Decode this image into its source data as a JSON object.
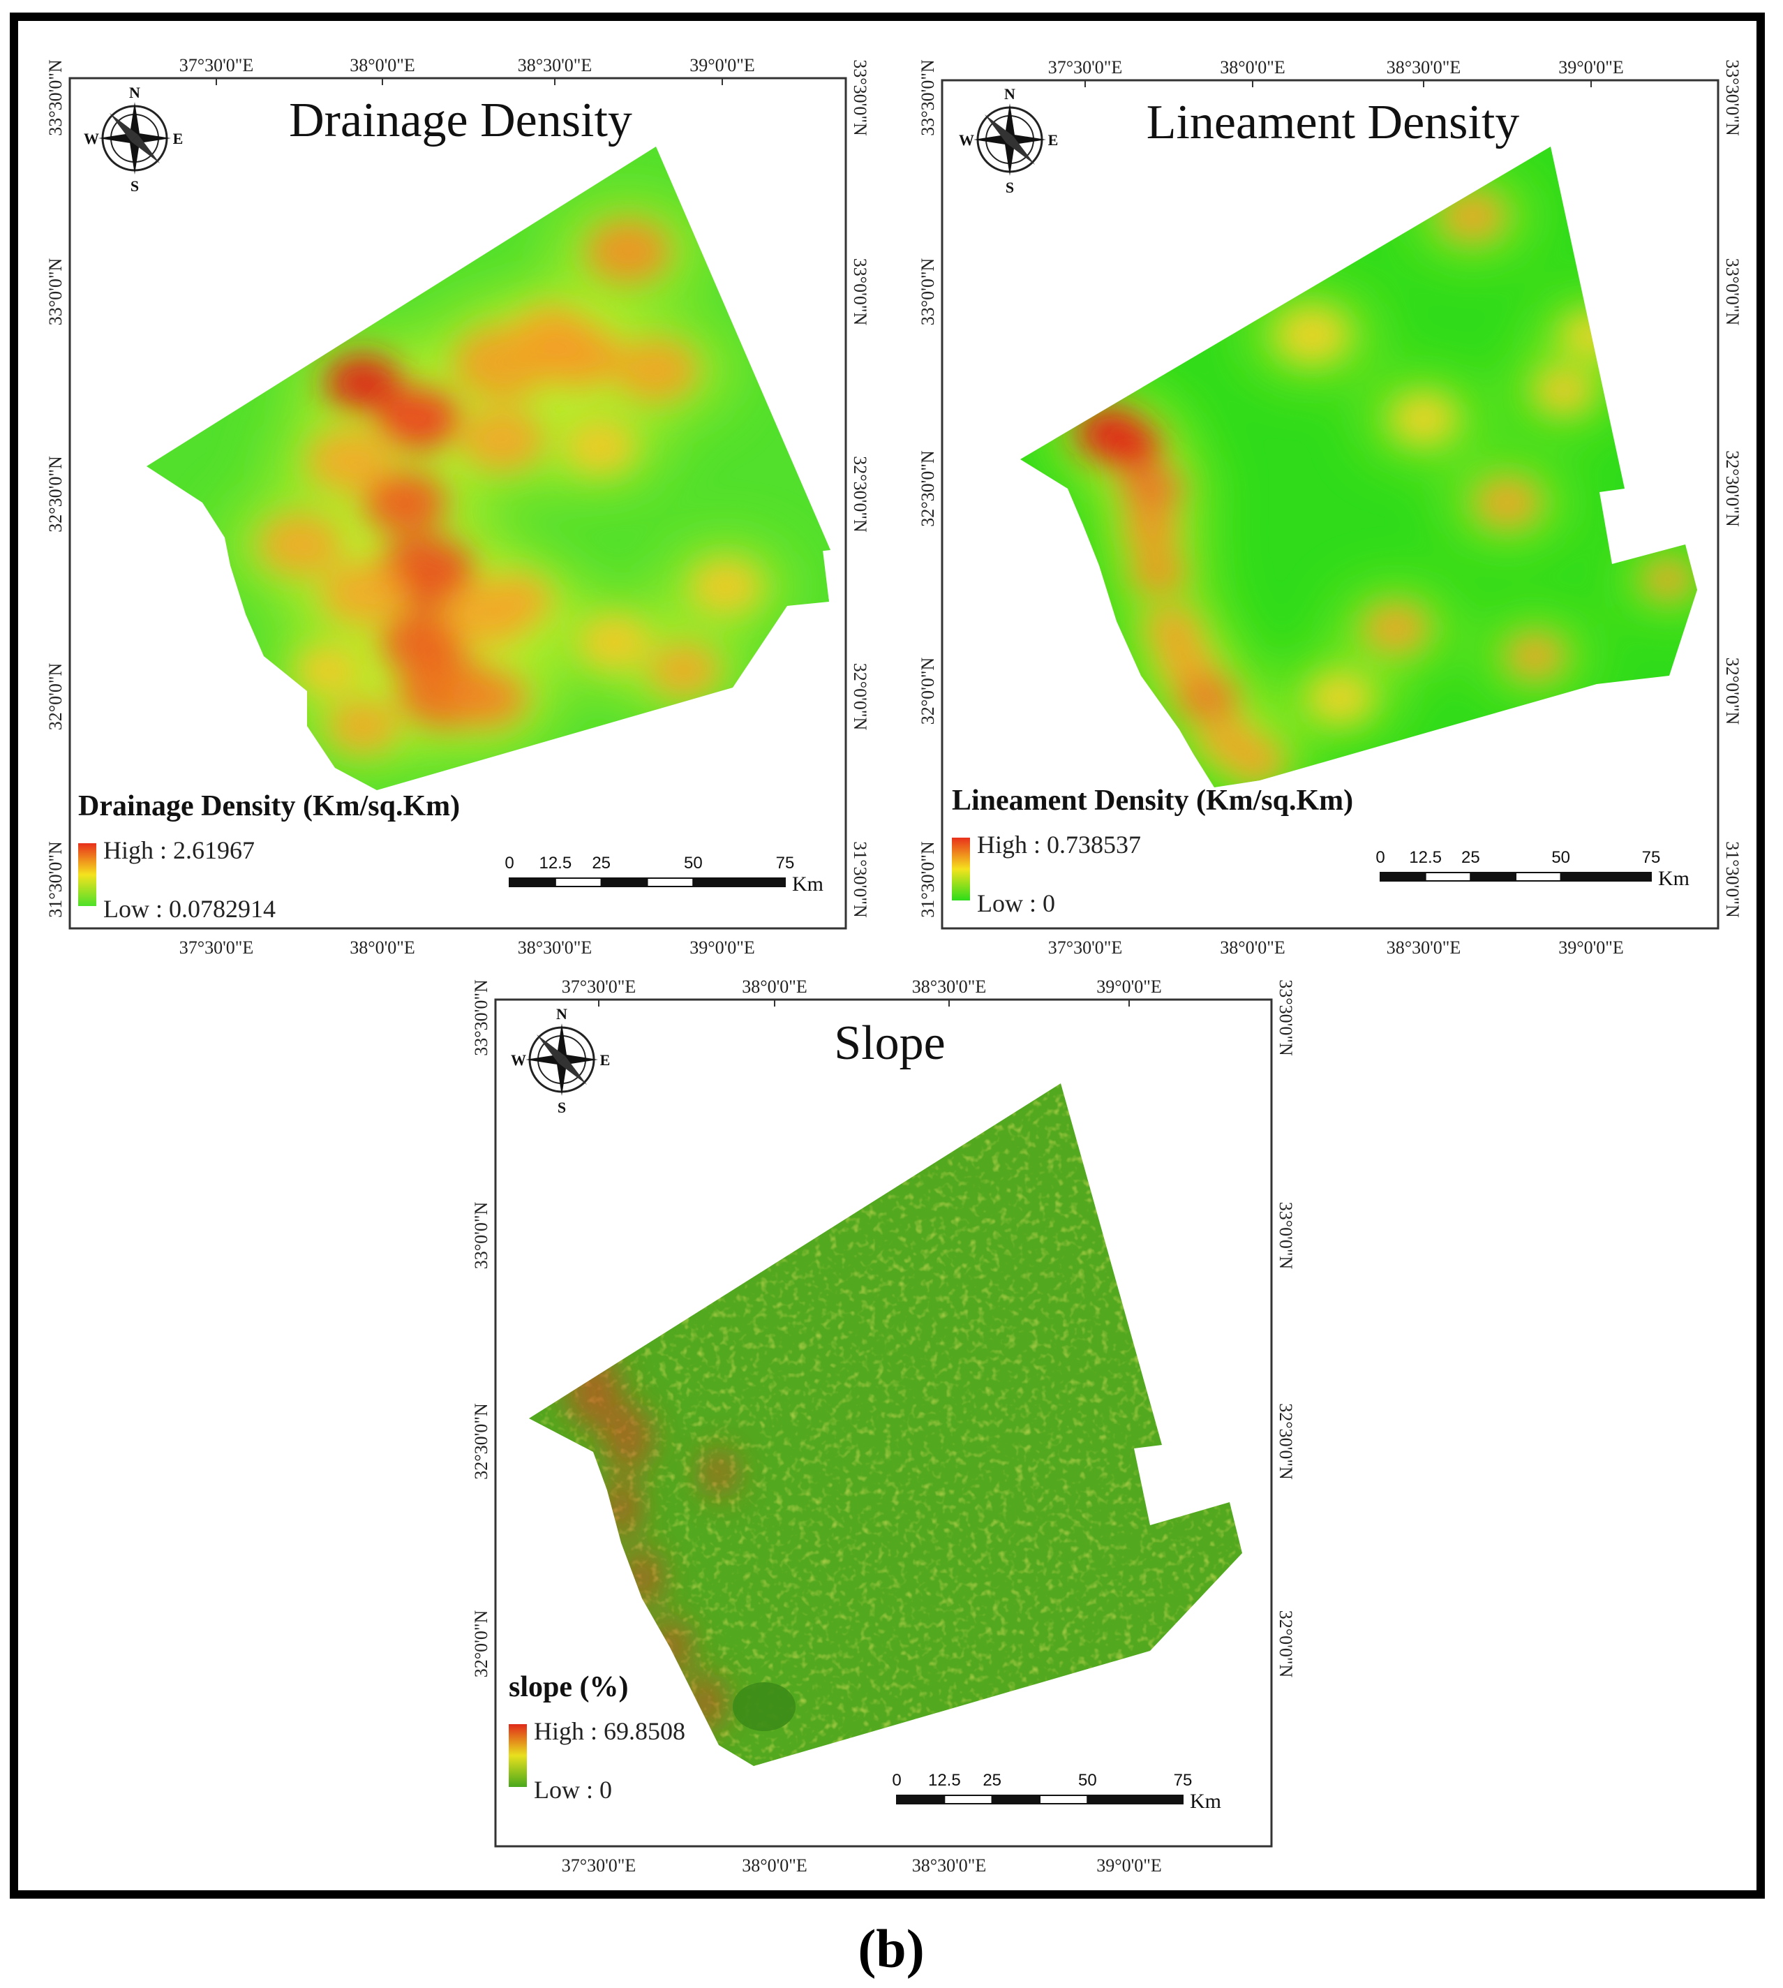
{
  "figure_label": "b",
  "maps": [
    {
      "id": "drainage",
      "title": "Drainage Density",
      "legend_title": "Drainage Density (Km/sq.Km)",
      "legend_high": "High : 2.61967",
      "legend_low": "Low : 0.0782914",
      "top_ticks": [
        "37°30'0\"E",
        "38°0'0\"E",
        "38°30'0\"E",
        "39°0'0\"E"
      ],
      "bottom_ticks": [
        "37°30'0\"E",
        "38°0'0\"E",
        "38°30'0\"E",
        "39°0'0\"E"
      ],
      "left_ticks": [
        "33°30'0\"N",
        "33°0'0\"N",
        "32°30'0\"N",
        "32°0'0\"N",
        "31°30'0\"N"
      ],
      "right_ticks": [
        "33°30'0\"N",
        "33°0'0\"N",
        "32°30'0\"N",
        "32°0'0\"N",
        "31°30'0\"N"
      ],
      "colors": {
        "high": "#e8301c",
        "mid": "#f5e21e",
        "low": "#4de02a"
      }
    },
    {
      "id": "lineament",
      "title": "Lineament Density",
      "legend_title": "Lineament Density  (Km/sq.Km)",
      "legend_high": "High : 0.738537",
      "legend_low": "Low : 0",
      "top_ticks": [
        "37°30'0\"E",
        "38°0'0\"E",
        "38°30'0\"E",
        "39°0'0\"E"
      ],
      "bottom_ticks": [
        "37°30'0\"E",
        "38°0'0\"E",
        "38°30'0\"E",
        "39°0'0\"E"
      ],
      "left_ticks": [
        "33°30'0\"N",
        "33°0'0\"N",
        "32°30'0\"N",
        "32°0'0\"N",
        "31°30'0\"N"
      ],
      "right_ticks": [
        "33°30'0\"N",
        "33°0'0\"N",
        "32°30'0\"N",
        "32°0'0\"N",
        "31°30'0\"N"
      ],
      "colors": {
        "high": "#e8301c",
        "mid": "#f5e21e",
        "low": "#2cdc1a"
      }
    },
    {
      "id": "slope",
      "title": "Slope",
      "legend_title": "slope (%)",
      "legend_high": "High : 69.8508",
      "legend_low": "Low : 0",
      "top_ticks": [
        "37°30'0\"E",
        "38°0'0\"E",
        "38°30'0\"E",
        "39°0'0\"E"
      ],
      "bottom_ticks": [
        "37°30'0\"E",
        "38°0'0\"E",
        "38°30'0\"E",
        "39°0'0\"E"
      ],
      "left_ticks": [
        "33°30'0\"N",
        "33°0'0\"N",
        "32°30'0\"N",
        "32°0'0\"N"
      ],
      "right_ticks": [
        "33°30'0\"N",
        "33°0'0\"N",
        "32°30'0\"N",
        "32°0'0\"N"
      ],
      "colors": {
        "high": "#e02a1a",
        "mid": "#e8e01e",
        "low": "#48a81c"
      }
    }
  ],
  "compass": {
    "n": "N",
    "s": "S",
    "e": "E",
    "w": "W"
  },
  "scale_bar": {
    "ticks": [
      "0",
      "12.5",
      "25",
      "50",
      "75"
    ],
    "unit": "Km"
  }
}
